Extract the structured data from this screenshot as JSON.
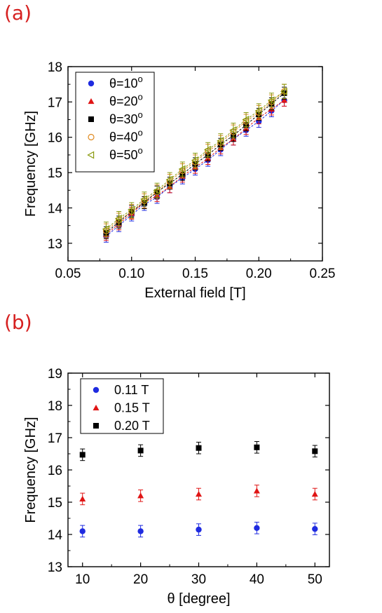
{
  "panels": {
    "a": "(a)",
    "b": "(b)"
  },
  "chart_data": [
    {
      "type": "scatter",
      "xlabel": "External field [T]",
      "ylabel": "Frequency [GHz]",
      "xlim": [
        0.05,
        0.25
      ],
      "ylim": [
        12.5,
        18
      ],
      "xticks": [
        0.05,
        0.1,
        0.15,
        0.2,
        0.25
      ],
      "xtick_labels": [
        "0.05",
        "0.10",
        "0.15",
        "0.20",
        "0.25"
      ],
      "yticks": [
        13,
        14,
        15,
        16,
        17,
        18
      ],
      "ytick_labels": [
        "13",
        "14",
        "15",
        "16",
        "17",
        "18"
      ],
      "legend": "top-left",
      "grid": false,
      "x": [
        0.08,
        0.09,
        0.1,
        0.11,
        0.12,
        0.13,
        0.14,
        0.15,
        0.16,
        0.17,
        0.18,
        0.19,
        0.2,
        0.21,
        0.22
      ],
      "series": [
        {
          "name": "θ=10°",
          "label_main": "θ=10",
          "label_sup": "o",
          "marker": "circle",
          "color": "#1f2be0",
          "values": [
            13.2,
            13.5,
            13.8,
            14.1,
            14.3,
            14.6,
            14.85,
            15.1,
            15.35,
            15.65,
            15.95,
            16.2,
            16.45,
            16.75,
            17.05
          ],
          "error": 0.17
        },
        {
          "name": "θ=20°",
          "label_main": "θ=20",
          "label_sup": "o",
          "marker": "triangle",
          "color": "#e01515",
          "values": [
            13.25,
            13.55,
            13.85,
            14.15,
            14.35,
            14.6,
            14.9,
            15.15,
            15.4,
            15.7,
            15.95,
            16.25,
            16.55,
            16.8,
            17.05
          ],
          "error": 0.17
        },
        {
          "name": "θ=30°",
          "label_main": "θ=30",
          "label_sup": "o",
          "marker": "square",
          "color": "#000000",
          "values": [
            13.3,
            13.6,
            13.9,
            14.15,
            14.45,
            14.7,
            14.95,
            15.25,
            15.5,
            15.8,
            16.05,
            16.35,
            16.65,
            16.95,
            17.25
          ],
          "error": 0.17
        },
        {
          "name": "θ=40°",
          "label_main": "θ=40",
          "label_sup": "o",
          "marker": "open-circle",
          "color": "#e08a20",
          "values": [
            13.35,
            13.65,
            13.9,
            14.2,
            14.45,
            14.75,
            15.05,
            15.3,
            15.6,
            15.85,
            16.15,
            16.45,
            16.7,
            17.0,
            17.3
          ],
          "error": 0.2
        },
        {
          "name": "θ=50°",
          "label_main": "θ=50",
          "label_sup": "o",
          "marker": "open-triangle-left",
          "color": "#8a9a10",
          "values": [
            13.4,
            13.7,
            13.95,
            14.25,
            14.5,
            14.8,
            15.1,
            15.35,
            15.65,
            15.9,
            16.2,
            16.5,
            16.75,
            17.05,
            17.3
          ],
          "error": 0.2
        }
      ]
    },
    {
      "type": "scatter",
      "xlabel": "θ [degree]",
      "ylabel": "Frequency [GHz]",
      "xlim": [
        7.5,
        52.5
      ],
      "ylim": [
        13,
        19
      ],
      "xticks": [
        10,
        20,
        30,
        40,
        50
      ],
      "xtick_labels": [
        "10",
        "20",
        "30",
        "40",
        "50"
      ],
      "yticks": [
        13,
        14,
        15,
        16,
        17,
        18,
        19
      ],
      "ytick_labels": [
        "13",
        "14",
        "15",
        "16",
        "17",
        "18",
        "19"
      ],
      "legend": "top-left",
      "grid": false,
      "x": [
        10,
        20,
        30,
        40,
        50
      ],
      "series": [
        {
          "name": "0.11 T",
          "marker": "circle",
          "color": "#1f2be0",
          "values": [
            14.1,
            14.1,
            14.15,
            14.2,
            14.17
          ],
          "error": 0.18
        },
        {
          "name": "0.15 T",
          "marker": "triangle",
          "color": "#e01515",
          "values": [
            15.1,
            15.2,
            15.25,
            15.35,
            15.25
          ],
          "error": 0.18
        },
        {
          "name": "0.20 T",
          "marker": "square",
          "color": "#000000",
          "values": [
            16.47,
            16.6,
            16.68,
            16.7,
            16.58
          ],
          "error": 0.18
        }
      ]
    }
  ]
}
